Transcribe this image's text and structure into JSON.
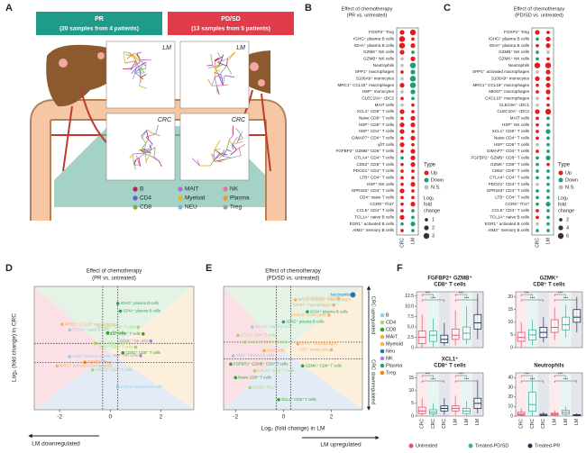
{
  "panel_a": {
    "letter": "A",
    "pr": {
      "title": "PR",
      "subtitle": "(20 samples from 4 patients)",
      "color": "#1e9c89"
    },
    "pdsd": {
      "title": "PD/SD",
      "subtitle": "(13 samples from 5 patients)",
      "color": "#e03c4a"
    },
    "thumbs": [
      "LM",
      "LM",
      "CRC",
      "CRC"
    ],
    "legend": [
      {
        "name": "B",
        "color": "#c2185b"
      },
      {
        "name": "CD4",
        "color": "#6a5acd"
      },
      {
        "name": "CD8",
        "color": "#7cb342"
      },
      {
        "name": "MAIT",
        "color": "#b36bd6"
      },
      {
        "name": "Myeloid",
        "color": "#e6b800"
      },
      {
        "name": "NEU",
        "color": "#7fb3d5"
      },
      {
        "name": "NK",
        "color": "#e57399"
      },
      {
        "name": "Plasma",
        "color": "#e39b2d"
      },
      {
        "name": "Treg",
        "color": "#9e9e9e"
      }
    ]
  },
  "panel_b": {
    "letter": "B",
    "title": "Effect of chemotherapy",
    "subtitle": "(PR vs. untreated)",
    "columns": [
      "CRC",
      "LM"
    ],
    "rows": [
      [
        "FOXP3⁺ Treg",
        "Up",
        2,
        "Up",
        3
      ],
      [
        "IGHG⁺ plasma B cells",
        "Up",
        3,
        "Up",
        1
      ],
      [
        "IGHA⁺ plasma B cells",
        "Up",
        3,
        "Up",
        2
      ],
      [
        "GZMK⁺ NK cells",
        "Up",
        2,
        "Down",
        1
      ],
      [
        "GZMB⁺ NK cells",
        "N.S.",
        1,
        "Up",
        2
      ],
      [
        "Neutrophils",
        "N.S.",
        1,
        "Down",
        3
      ],
      [
        "SPP1⁺ macrophages",
        "Up",
        1,
        "Down",
        2
      ],
      [
        "S100A9⁺ monocytes",
        "N.S.",
        1,
        "Down",
        3
      ],
      [
        "MRC1⁺ CCL18⁺ macrophages",
        "Up",
        2,
        "Down",
        3
      ],
      [
        "HSP⁺ monocytes",
        "N.S.",
        1,
        "Down",
        2
      ],
      [
        "CLEC10A⁺ cDC2",
        "Up",
        1,
        "Down",
        1
      ],
      [
        "MAIT cells",
        "N.S.",
        1,
        "Up",
        1
      ],
      [
        "XCL1⁺ CD8⁺ T cells",
        "Up",
        2,
        "Up",
        1
      ],
      [
        "Naive CD8⁺ T cells",
        "Up",
        1,
        "Up",
        2
      ],
      [
        "HSP⁺ CD8⁺ T cells",
        "Up",
        2,
        "Up",
        2
      ],
      [
        "HSP⁺ CD4⁺ T cells",
        "Up",
        2,
        "Up",
        1
      ],
      [
        "GIMAP7⁺ CD4⁺ T cells",
        "Up",
        1,
        "Up",
        2
      ],
      [
        "γδT cells",
        "Up",
        2,
        "Up",
        1
      ],
      [
        "FGFBP2⁺ GZMB⁺ CD8⁺ T cells",
        "Up",
        1,
        "Up",
        2
      ],
      [
        "CTLA4⁺ CD4⁺ T cells",
        "Down",
        1,
        "Up",
        2
      ],
      [
        "CD52⁺ CD8⁺ T cells",
        "Up",
        1,
        "Up",
        2
      ],
      [
        "PDCD1⁺ CD4⁺ T cells",
        "Up",
        1,
        "Up",
        1
      ],
      [
        "LTB⁺ CD4⁺ T cells",
        "Up",
        1,
        "Up",
        1
      ],
      [
        "HSP⁺ NK cells",
        "Up",
        1,
        "Up",
        2
      ],
      [
        "GPR183⁺ CD4⁺ T cells",
        "Up",
        2,
        "Up",
        1
      ],
      [
        "CD4⁺ naive T cells",
        "Up",
        1,
        "Up",
        1
      ],
      [
        "CCR6⁺ Th17",
        "Up",
        1,
        "Up",
        2
      ],
      [
        "CCL5⁺ CD4⁺ T cells",
        "Up",
        1,
        "Down",
        1
      ],
      [
        "TCL1A⁺ naive B cells",
        "Up",
        2,
        "Down",
        1
      ],
      [
        "EGR1⁺ activated B cells",
        "Down",
        1,
        "Down",
        2
      ],
      [
        "AIM2⁺ memory B cells",
        "Up",
        1,
        "Down",
        1
      ]
    ],
    "type_legend": {
      "title": "Type",
      "items": [
        {
          "name": "Up",
          "color": "#e41a1c"
        },
        {
          "name": "Down",
          "color": "#1a9e77"
        },
        {
          "name": "N.S.",
          "color": "#bdbdbd"
        }
      ]
    },
    "size_legend": {
      "title": [
        "Log₂",
        "fold",
        "change"
      ],
      "values": [
        1,
        2,
        3
      ]
    }
  },
  "panel_c": {
    "letter": "C",
    "title": "Effect of chemotherapy",
    "subtitle": "(PD/SD vs. untreated)",
    "columns": [
      "CRC",
      "LM"
    ],
    "rows": [
      [
        "FOXP3⁺ Treg",
        "Up",
        4,
        "Up",
        2
      ],
      [
        "IGHG⁺ plasma B cells",
        "Down",
        2,
        "Up",
        4
      ],
      [
        "IGHA⁺ plasma B cells",
        "Up",
        2,
        "Up",
        4
      ],
      [
        "GZMB⁺ NK cells",
        "Down",
        2,
        "N.S.",
        2
      ],
      [
        "GZMK⁺ NK cells",
        "Down",
        2,
        "Up",
        2
      ],
      [
        "Neutrophils",
        "Up",
        6,
        "Up",
        6
      ],
      [
        "SPP1⁺ activated macrophages",
        "N.S.",
        2,
        "Up",
        4
      ],
      [
        "S100A9⁺ monocytes",
        "Up",
        4,
        "Up",
        4
      ],
      [
        "MRC1⁺ CCL18⁺ macrophages",
        "Up",
        2,
        "Up",
        4
      ],
      [
        "MKI67⁺ macrophages",
        "Up",
        2,
        "Up",
        4
      ],
      [
        "CXCL10⁺ macrophages",
        "N.S.",
        2,
        "Up",
        2
      ],
      [
        "CLEC9A⁺ cDC1",
        "N.S.",
        2,
        "Up",
        2
      ],
      [
        "CLEC10A⁺ cDC2",
        "Up",
        4,
        "Up",
        6
      ],
      [
        "MAIT cells",
        "Up",
        2,
        "Down",
        2
      ],
      [
        "HSP⁺ NK cells",
        "Up",
        2,
        "Down",
        2
      ],
      [
        "XCL1⁺ CD8⁺ T cells",
        "Up",
        2,
        "Down",
        4
      ],
      [
        "Naive CD4⁺ T cells",
        "Up",
        2,
        "Down",
        2
      ],
      [
        "HSP⁺ CD8⁺ T cells",
        "N.S.",
        2,
        "Down",
        2
      ],
      [
        "GIMAP7⁺ CD4⁺ T cells",
        "Up",
        2,
        "Down",
        2
      ],
      [
        "FGFBP2⁺ GZMB⁺ CD8⁺ T cells",
        "Down",
        2,
        "Down",
        4
      ],
      [
        "GZMK⁺ CD8⁺ T cells",
        "Down",
        2,
        "Up",
        2
      ],
      [
        "CD52⁺ CD8⁺ T cells",
        "Down",
        2,
        "Down",
        2
      ],
      [
        "CTLA4⁺ CD4⁺ T cells",
        "Down",
        2,
        "Down",
        2
      ],
      [
        "PDCD1⁺ CD4⁺ T cells",
        "N.S.",
        2,
        "Down",
        2
      ],
      [
        "GPR183⁺ CD4⁺ T cells",
        "Down",
        2,
        "Down",
        2
      ],
      [
        "LTB⁺ CD4⁺ T cells",
        "Down",
        2,
        "Down",
        2
      ],
      [
        "CCR6⁺ Th17",
        "Down",
        2,
        "Down",
        4
      ],
      [
        "CCL5⁺ CD4⁺ T cells",
        "Up",
        2,
        "Down",
        2
      ],
      [
        "TCL1A⁺ naive B cells",
        "Up",
        2,
        "Down",
        2
      ],
      [
        "EGR1⁺ activated B cells",
        "N.S.",
        2,
        "Down",
        2
      ],
      [
        "AIM2⁺ memory B cells",
        "Down",
        2,
        "Down",
        2
      ]
    ],
    "type_legend": {
      "title": "Type",
      "items": [
        {
          "name": "Up",
          "color": "#e41a1c"
        },
        {
          "name": "Down",
          "color": "#1a9e77"
        },
        {
          "name": "N.S.",
          "color": "#bdbdbd"
        }
      ]
    },
    "size_legend": {
      "title": [
        "Log₂",
        "fold",
        "change"
      ],
      "values": [
        2,
        4,
        6
      ]
    }
  },
  "panel_d": {
    "letter": "D",
    "title": "Effect of chemotherapy",
    "subtitle": "(PR vs. untreated)",
    "y_label": "Log₂ (fold change) in CRC",
    "x_annotation": "LM downregulated",
    "xlim": [
      -3,
      3.3
    ],
    "ylim": [
      -3,
      3.5
    ],
    "xticks": [
      -2,
      0,
      2
    ],
    "thresholds": {
      "x": [
        -0.3,
        0.3
      ],
      "y": [
        -0.5,
        0.5
      ]
    },
    "points": [
      [
        0.3,
        2.6,
        "IGHG⁺ plasma B cells",
        "Plasma"
      ],
      [
        0.4,
        2.2,
        "IGHA⁺ plasma B cells",
        "Plasma"
      ],
      [
        -1.9,
        1.5,
        "MRC1⁺ CCL18⁺ macrophages",
        "Myeloid"
      ],
      [
        -1.6,
        1.2,
        "TCL1A⁺ naive B cells",
        "B"
      ],
      [
        1.1,
        1.35,
        "GPR183⁺ CD4⁺ T cells",
        "CD4"
      ],
      [
        1.3,
        1.0,
        "XCL1⁺ CD8⁺ T cells",
        "CD8"
      ],
      [
        -0.1,
        1.05,
        "γδT cells",
        "CD8"
      ],
      [
        -0.6,
        0.5,
        "LTB⁺ CD4⁺ T cells",
        "CD4"
      ],
      [
        1.0,
        0.3,
        "HSP⁺ CD4⁺ T cells",
        "CD4"
      ],
      [
        1.6,
        0.62,
        "GZMK⁺ NK cells",
        "NK"
      ],
      [
        -1.6,
        -0.2,
        "AIM2⁺ memory B cells",
        "B"
      ],
      [
        0.5,
        0.0,
        "CD52⁺ CD8⁺ T cells",
        "CD8"
      ],
      [
        1.2,
        -0.15,
        "HSP⁺ NK cells",
        "NK"
      ],
      [
        -1.0,
        -0.5,
        "FOXP3⁺ Treg",
        "Treg"
      ],
      [
        -2.1,
        -0.7,
        "SPP1⁺ activated macrophages",
        "Myeloid"
      ],
      [
        -0.7,
        -0.9,
        "CTLA4⁺ CD4⁺ T cells",
        "CD4"
      ],
      [
        0.3,
        -1.8,
        "EGR1⁺ activated B cells",
        "B"
      ]
    ]
  },
  "panel_e": {
    "letter": "E",
    "title": "Effect of chemotherapy",
    "subtitle": "(PD/SD vs. untreated)",
    "x_label": "Log₂ (fold change) in LM",
    "x_annotation": "LM upregulated",
    "y_up": "CRC upregulated",
    "y_down": "CRC downregulated",
    "xlim": [
      -2.5,
      3.3
    ],
    "ylim": [
      -3.5,
      3.8
    ],
    "xticks": [
      -2,
      0,
      2
    ],
    "thresholds": {
      "x": [
        -0.3,
        0.3
      ],
      "y": [
        -0.5,
        0.5
      ]
    },
    "legend": [
      {
        "name": "B",
        "color": "#9ecae1"
      },
      {
        "name": "CD4",
        "color": "#a6d96a"
      },
      {
        "name": "CD8",
        "color": "#33a02c"
      },
      {
        "name": "MAIT",
        "color": "#f2b134"
      },
      {
        "name": "Myeloid",
        "color": "#fdae61"
      },
      {
        "name": "Neu",
        "color": "#1f78b4"
      },
      {
        "name": "NK",
        "color": "#b57edc"
      },
      {
        "name": "Plasma",
        "color": "#2ca25f"
      },
      {
        "name": "Treg",
        "color": "#ff7f00"
      }
    ],
    "points": [
      [
        2.9,
        3.3,
        "Neutrophils",
        "Neu"
      ],
      [
        2.3,
        3.1,
        "CLEC10A⁺ cDC2",
        "Myeloid"
      ],
      [
        2.1,
        2.7,
        "MKI67⁺ macrophages",
        "Myeloid"
      ],
      [
        1.9,
        2.1,
        "S100A9⁺ monocytes",
        "Myeloid"
      ],
      [
        0.5,
        3.0,
        "MRC1⁺ CCL18⁺ macrophages",
        "Myeloid"
      ],
      [
        1.0,
        2.3,
        "IGHA⁺ plasma B cells",
        "Plasma"
      ],
      [
        0.0,
        1.7,
        "IGHG⁺ plasma B cells",
        "Plasma"
      ],
      [
        -1.3,
        1.4,
        "TCL1A⁺ naive B cells",
        "B"
      ],
      [
        -1.9,
        0.9,
        "CCL5⁺ CD4⁺ T cells",
        "CD4"
      ],
      [
        -1.6,
        0.5,
        "GIMAP7⁺ CD4⁺ T cells",
        "CD4"
      ],
      [
        0.6,
        0.4,
        "SPP1⁺ macrophages",
        "Myeloid"
      ],
      [
        2.0,
        0.05,
        "HSP⁺ monocytes",
        "Myeloid"
      ],
      [
        -0.8,
        0.0,
        "MAIT cells",
        "MAIT"
      ],
      [
        -2.1,
        -0.3,
        "AIM2⁺ memory B cells",
        "B"
      ],
      [
        -2.2,
        -0.8,
        "FGFBP2⁺ GZMB⁺ CD8⁺ T cells",
        "CD8"
      ],
      [
        -1.2,
        -1.2,
        "CTLA4⁺ CD4⁺ T cells",
        "CD4"
      ],
      [
        0.8,
        -0.9,
        "GZMK⁺ CD8⁺ T cells",
        "CD8"
      ],
      [
        -2.0,
        -1.6,
        "Naive CD8⁺ T cells",
        "CD8"
      ],
      [
        -1.4,
        -2.2,
        "CCR6⁺ Th17",
        "CD4"
      ],
      [
        -0.2,
        -2.9,
        "XCL1⁺ CD8⁺ T cells",
        "CD8"
      ]
    ]
  },
  "panel_f": {
    "letter": "F",
    "x_labels": [
      "CRC",
      "CRC",
      "CRC",
      "LM",
      "LM",
      "LM"
    ],
    "legend": [
      {
        "name": "Untreated",
        "color": "#e8506a"
      },
      {
        "name": "Treated-PD/SD",
        "color": "#3fb39a"
      },
      {
        "name": "Treated-PR",
        "color": "#1d3557"
      }
    ],
    "panels": [
      {
        "title": [
          "FGFBP2⁺ GZMB⁺",
          "CD8⁺ T cells"
        ],
        "ylim": [
          0,
          13.5
        ],
        "yticks": [
          {
            "value": 0,
            "label": "0"
          },
          2.5,
          {
            "value": 5,
            "label": "5.0"
          },
          7.5,
          {
            "value": 10,
            "label": "10.0"
          },
          12.5
        ],
        "sig_labels": [
          "***",
          "***",
          "***",
          "***"
        ],
        "boxes": [
          [
            0,
            1,
            2.5,
            4,
            8
          ],
          [
            0.2,
            1.5,
            3,
            4,
            7
          ],
          [
            0.5,
            1.2,
            2,
            3,
            6
          ],
          [
            0.5,
            2,
            3,
            4.5,
            9
          ],
          [
            0.8,
            2,
            3.5,
            5,
            10
          ],
          [
            2,
            4.5,
            6,
            8,
            13
          ]
        ]
      },
      {
        "title": [
          "GZMK⁺",
          "CD8⁺ T cells"
        ],
        "ylim": [
          0,
          22
        ],
        "yticks": [
          0,
          5,
          10,
          15,
          20
        ],
        "sig_labels": [
          "***",
          "***",
          "***",
          "***"
        ],
        "boxes": [
          [
            0,
            2.5,
            4,
            6,
            10
          ],
          [
            1,
            3,
            5,
            7,
            11
          ],
          [
            2,
            4,
            6,
            8,
            12
          ],
          [
            3,
            6,
            8,
            11,
            16
          ],
          [
            4,
            7,
            9,
            12,
            17
          ],
          [
            6,
            10,
            12,
            15,
            20
          ]
        ]
      },
      {
        "title": [
          "XCL1⁺",
          "CD8⁺ T cells"
        ],
        "ylim": [
          0,
          17
        ],
        "yticks": [
          0,
          5,
          10,
          15
        ],
        "sig_labels": [
          "***",
          "***",
          "***",
          "***"
        ],
        "boxes": [
          [
            0,
            1,
            2,
            3.5,
            7
          ],
          [
            0,
            0.8,
            1.5,
            2.5,
            5
          ],
          [
            0.5,
            2,
            3,
            4,
            7
          ],
          [
            0.5,
            2,
            3,
            4,
            8
          ],
          [
            0,
            1,
            2,
            3,
            6
          ],
          [
            1,
            3,
            5,
            7,
            14
          ]
        ]
      },
      {
        "title": [
          "Neutrophils"
        ],
        "ylim": [
          0,
          45
        ],
        "yticks": [
          0,
          10,
          20,
          30,
          40
        ],
        "sig_labels": [
          "***",
          "***",
          "***",
          "***"
        ],
        "boxes": [
          [
            0,
            1,
            2,
            4,
            8
          ],
          [
            0,
            5,
            12,
            25,
            40
          ],
          [
            0,
            0.5,
            1,
            2,
            4
          ],
          [
            0,
            1,
            2,
            3,
            6
          ],
          [
            0,
            2,
            4,
            6,
            10
          ],
          [
            0,
            0.5,
            1,
            1.5,
            3
          ]
        ]
      }
    ]
  }
}
